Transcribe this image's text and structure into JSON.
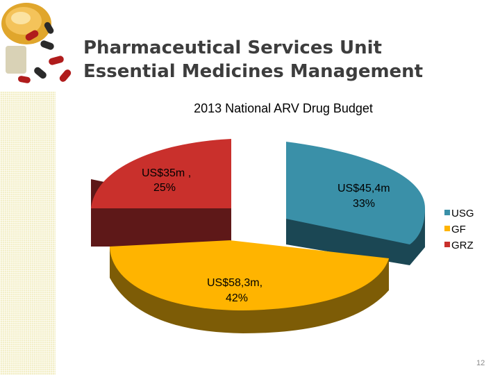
{
  "slide": {
    "title_line1": "Pharmaceutical Services Unit",
    "title_line2": "Essential Medicines Management",
    "page_number": "12"
  },
  "colors": {
    "sidebar": "#f3efc9",
    "title_text": "#3d3d3d"
  },
  "chart_data": {
    "type": "pie",
    "title": "2013 National ARV Drug Budget",
    "style": "3d-exploded",
    "legend_position": "right",
    "slices": [
      {
        "name": "USG",
        "value": 45.4,
        "percent": 33,
        "label_line1": "US$45,4m",
        "label_line2": "33%",
        "top_color": "#3a90a8",
        "side_color": "#1b4754"
      },
      {
        "name": "GF",
        "value": 58.3,
        "percent": 42,
        "label_line1": "US$58,3m,",
        "label_line2": "42%",
        "top_color": "#ffb400",
        "side_color": "#7d5c06"
      },
      {
        "name": "GRZ",
        "value": 35,
        "percent": 25,
        "label_line1": "US$35m ,",
        "label_line2": "25%",
        "top_color": "#c9302c",
        "side_color": "#5e1818"
      }
    ]
  }
}
